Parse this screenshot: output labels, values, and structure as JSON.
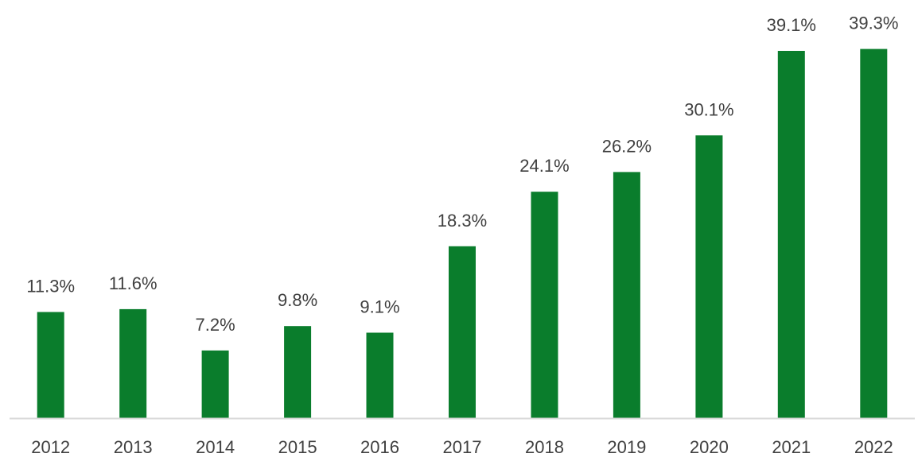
{
  "chart_data": {
    "type": "bar",
    "title": "",
    "xlabel": "",
    "ylabel": "",
    "categories": [
      "2012",
      "2013",
      "2014",
      "2015",
      "2016",
      "2017",
      "2018",
      "2019",
      "2020",
      "2021",
      "2022"
    ],
    "values": [
      11.3,
      11.6,
      7.2,
      9.8,
      9.1,
      18.3,
      24.1,
      26.2,
      30.1,
      39.1,
      39.3
    ],
    "data_labels": [
      "11.3%",
      "11.6%",
      "7.2%",
      "9.8%",
      "9.1%",
      "18.3%",
      "24.1%",
      "26.2%",
      "30.1%",
      "39.1%",
      "39.3%"
    ],
    "ylim": [
      0,
      40
    ],
    "grid": false,
    "legend": "none",
    "colors": {
      "bar": "#0a7d2c",
      "axis": "#d9d9d9",
      "text": "#404040"
    }
  }
}
